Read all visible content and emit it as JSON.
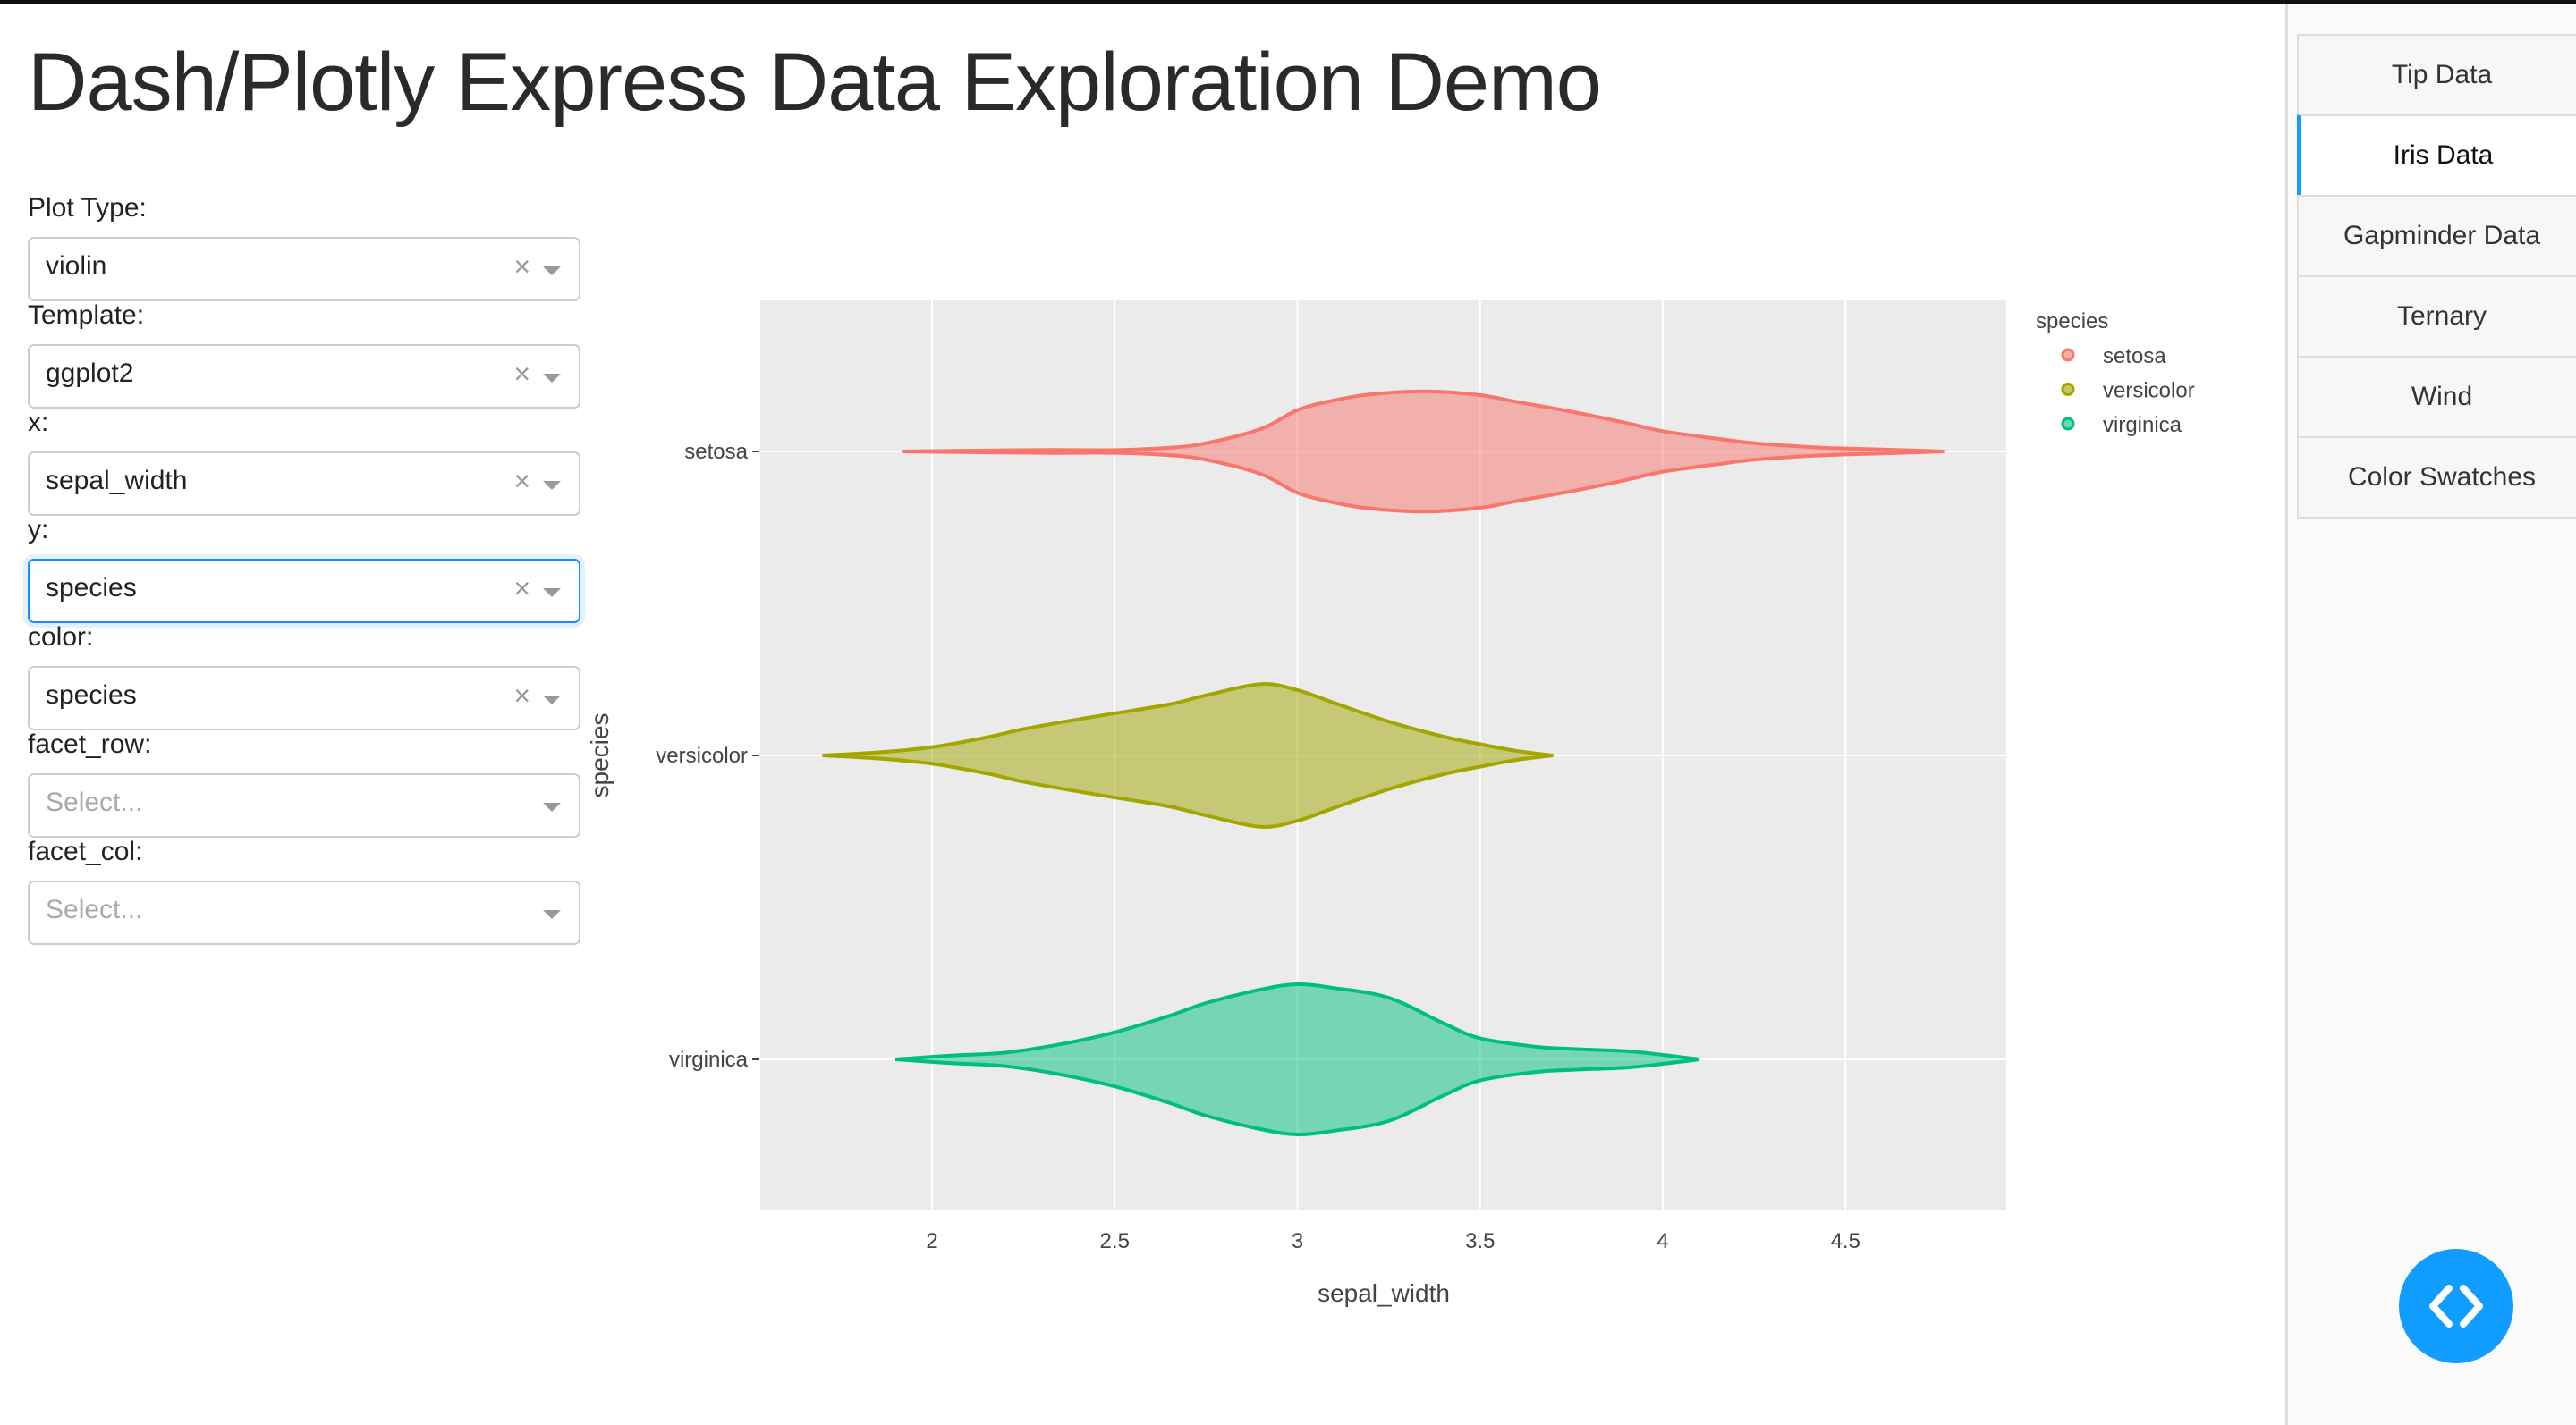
{
  "header": {
    "title": "Dash/Plotly Express Data Exploration Demo"
  },
  "controls": [
    {
      "label": "Plot Type:",
      "value": "violin",
      "placeholder": "Select...",
      "clearable": true,
      "focused": false
    },
    {
      "label": "Template:",
      "value": "ggplot2",
      "placeholder": "Select...",
      "clearable": true,
      "focused": false
    },
    {
      "label": "x:",
      "value": "sepal_width",
      "placeholder": "Select...",
      "clearable": true,
      "focused": false
    },
    {
      "label": "y:",
      "value": "species",
      "placeholder": "Select...",
      "clearable": true,
      "focused": true
    },
    {
      "label": "color:",
      "value": "species",
      "placeholder": "Select...",
      "clearable": true,
      "focused": false
    },
    {
      "label": "facet_row:",
      "value": "",
      "placeholder": "Select...",
      "clearable": false,
      "focused": false
    },
    {
      "label": "facet_col:",
      "value": "",
      "placeholder": "Select...",
      "clearable": false,
      "focused": false
    }
  ],
  "clear_glyph": "×",
  "tabs": [
    {
      "label": "Tip Data",
      "active": false
    },
    {
      "label": "Iris Data",
      "active": true
    },
    {
      "label": "Gapminder Data",
      "active": false
    },
    {
      "label": "Ternary",
      "active": false
    },
    {
      "label": "Wind",
      "active": false
    },
    {
      "label": "Color Swatches",
      "active": false
    }
  ],
  "fab": {
    "icon": "code-icon"
  },
  "chart_data": {
    "type": "violin",
    "orientation": "horizontal",
    "xlabel": "sepal_width",
    "ylabel": "species",
    "xlim": [
      1.53,
      4.94
    ],
    "xticks": [
      2,
      2.5,
      3,
      3.5,
      4,
      4.5
    ],
    "xtick_labels": [
      "2",
      "2.5",
      "3",
      "3.5",
      "4",
      "4.5"
    ],
    "categories": [
      "setosa",
      "versicolor",
      "virginica"
    ],
    "legend": {
      "title": "species",
      "placement": "top-right"
    },
    "grid": true,
    "background": "#ebebeb",
    "series": [
      {
        "name": "setosa",
        "color": "#F8766D",
        "density": [
          [
            1.92,
            0
          ],
          [
            2.1,
            0.01
          ],
          [
            2.3,
            0.02
          ],
          [
            2.5,
            0.02
          ],
          [
            2.65,
            0.05
          ],
          [
            2.75,
            0.11
          ],
          [
            2.9,
            0.3
          ],
          [
            3.0,
            0.55
          ],
          [
            3.1,
            0.68
          ],
          [
            3.2,
            0.76
          ],
          [
            3.35,
            0.8
          ],
          [
            3.5,
            0.75
          ],
          [
            3.6,
            0.66
          ],
          [
            3.75,
            0.53
          ],
          [
            3.9,
            0.38
          ],
          [
            4.0,
            0.27
          ],
          [
            4.15,
            0.17
          ],
          [
            4.25,
            0.11
          ],
          [
            4.4,
            0.06
          ],
          [
            4.5,
            0.04
          ],
          [
            4.65,
            0.02
          ],
          [
            4.77,
            0
          ]
        ]
      },
      {
        "name": "versicolor",
        "color": "#A3A500",
        "density": [
          [
            1.7,
            0
          ],
          [
            1.85,
            0.04
          ],
          [
            2.0,
            0.11
          ],
          [
            2.15,
            0.24
          ],
          [
            2.25,
            0.35
          ],
          [
            2.4,
            0.48
          ],
          [
            2.5,
            0.56
          ],
          [
            2.65,
            0.68
          ],
          [
            2.75,
            0.8
          ],
          [
            2.9,
            0.95
          ],
          [
            3.0,
            0.87
          ],
          [
            3.1,
            0.7
          ],
          [
            3.25,
            0.45
          ],
          [
            3.4,
            0.25
          ],
          [
            3.5,
            0.15
          ],
          [
            3.6,
            0.06
          ],
          [
            3.7,
            0
          ]
        ]
      },
      {
        "name": "virginica",
        "color": "#00BF7D",
        "density": [
          [
            1.9,
            0
          ],
          [
            2.05,
            0.05
          ],
          [
            2.2,
            0.09
          ],
          [
            2.35,
            0.2
          ],
          [
            2.5,
            0.36
          ],
          [
            2.65,
            0.58
          ],
          [
            2.75,
            0.75
          ],
          [
            2.9,
            0.93
          ],
          [
            3.0,
            1.0
          ],
          [
            3.1,
            0.95
          ],
          [
            3.25,
            0.82
          ],
          [
            3.4,
            0.48
          ],
          [
            3.5,
            0.28
          ],
          [
            3.65,
            0.17
          ],
          [
            3.75,
            0.14
          ],
          [
            3.9,
            0.11
          ],
          [
            4.0,
            0.06
          ],
          [
            4.1,
            0
          ]
        ]
      }
    ]
  }
}
